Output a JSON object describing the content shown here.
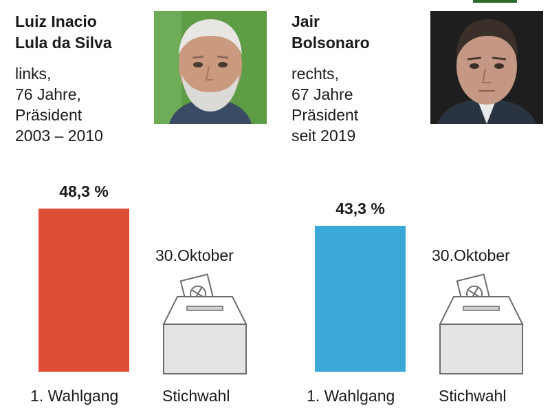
{
  "candidates": [
    {
      "name_line1": "Luiz Inacio",
      "name_line2": "Lula da Silva",
      "info": [
        "links,",
        "76 Jahre,",
        "Präsident",
        "2003 – 2010"
      ],
      "photo_icon": "portrait-lula",
      "bar_color": "#de4d36",
      "first_round_label": "48,3 %"
    },
    {
      "name_line1": "Jair",
      "name_line2": "Bolsonaro",
      "info": [
        "rechts,",
        "67 Jahre",
        "Präsident",
        "seit 2019"
      ],
      "photo_icon": "portrait-bolsonaro",
      "bar_color": "#3aa7d6",
      "first_round_label": "43,3 %"
    }
  ],
  "runoff_date": "30.Oktober",
  "ballot_icon": "ballot-box-icon",
  "chart_data": [
    {
      "type": "bar",
      "title": "",
      "categories": [
        "1. Wahlgang",
        "Stichwahl"
      ],
      "series": [
        {
          "name": "Luiz Inacio Lula da Silva",
          "values": [
            48.3,
            null
          ]
        }
      ],
      "value_labels": [
        "48,3 %",
        null
      ],
      "unit": "%",
      "annotations": [
        "30.Oktober"
      ],
      "xlabel": "",
      "ylabel": "",
      "grid": false,
      "legend": "none"
    },
    {
      "type": "bar",
      "title": "",
      "categories": [
        "1. Wahlgang",
        "Stichwahl"
      ],
      "series": [
        {
          "name": "Jair Bolsonaro",
          "values": [
            43.3,
            null
          ]
        }
      ],
      "value_labels": [
        "43,3 %",
        null
      ],
      "unit": "%",
      "annotations": [
        "30.Oktober"
      ],
      "xlabel": "",
      "ylabel": "",
      "grid": false,
      "legend": "none"
    }
  ]
}
